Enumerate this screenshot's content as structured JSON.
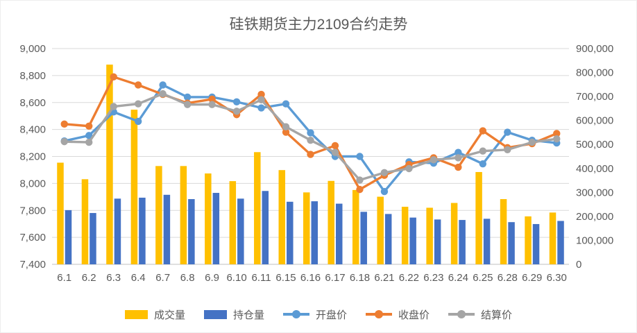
{
  "title": "硅铁期货主力2109合约走势",
  "chart_data": {
    "type": "combo (bar + line, dual axis)",
    "categories": [
      "6.1",
      "6.2",
      "6.3",
      "6.4",
      "6.7",
      "6.8",
      "6.9",
      "6.10",
      "6.11",
      "6.15",
      "6.16",
      "6.17",
      "6.18",
      "6.21",
      "6.22",
      "6.23",
      "6.24",
      "6.25",
      "6.28",
      "6.29",
      "6.30"
    ],
    "series": [
      {
        "key": "volume",
        "name": "成交量",
        "type": "bar",
        "axis": "right",
        "color": "#FFC000",
        "values": [
          424000,
          355000,
          833000,
          645000,
          410000,
          410000,
          379000,
          347000,
          468000,
          393000,
          300000,
          348000,
          310000,
          282000,
          240000,
          236000,
          256000,
          385000,
          272000,
          200000,
          216000
        ]
      },
      {
        "key": "open-interest",
        "name": "持仓量",
        "type": "bar",
        "axis": "right",
        "color": "#4472C4",
        "values": [
          226000,
          214000,
          274000,
          278000,
          290000,
          272000,
          298000,
          274000,
          306000,
          261000,
          263000,
          253000,
          219000,
          210000,
          195000,
          187000,
          185000,
          190000,
          176000,
          168000,
          181000
        ]
      },
      {
        "key": "open-price",
        "name": "开盘价",
        "type": "line",
        "axis": "left",
        "color": "#5B9BD5",
        "values": [
          8315,
          8355,
          8530,
          8460,
          8730,
          8640,
          8640,
          8605,
          8560,
          8590,
          8375,
          8200,
          8200,
          7940,
          8160,
          8150,
          8230,
          8145,
          8380,
          8320,
          8300
        ]
      },
      {
        "key": "close-price",
        "name": "收盘价",
        "type": "line",
        "axis": "left",
        "color": "#ED7D31",
        "values": [
          8440,
          8425,
          8790,
          8730,
          8660,
          8595,
          8625,
          8510,
          8660,
          8380,
          8215,
          8280,
          7955,
          8060,
          8140,
          8190,
          8120,
          8390,
          8265,
          8295,
          8370
        ]
      },
      {
        "key": "settle-price",
        "name": "结算价",
        "type": "line",
        "axis": "left",
        "color": "#A5A5A5",
        "values": [
          8310,
          8305,
          8570,
          8590,
          8665,
          8585,
          8585,
          8535,
          8620,
          8420,
          8320,
          8230,
          8025,
          8080,
          8110,
          8175,
          8190,
          8240,
          8250,
          8305,
          8330
        ]
      }
    ],
    "left_axis": {
      "min": 7400,
      "max": 9000,
      "step": 200,
      "ticks": [
        "9,000",
        "8,800",
        "8,600",
        "8,400",
        "8,200",
        "8,000",
        "7,800",
        "7,600",
        "7,400"
      ]
    },
    "right_axis": {
      "min": 0,
      "max": 900000,
      "step": 100000,
      "ticks": [
        "900,000",
        "800,000",
        "700,000",
        "600,000",
        "500,000",
        "400,000",
        "300,000",
        "200,000",
        "100,000",
        "0"
      ]
    },
    "grid": true,
    "legend_position": "bottom"
  }
}
